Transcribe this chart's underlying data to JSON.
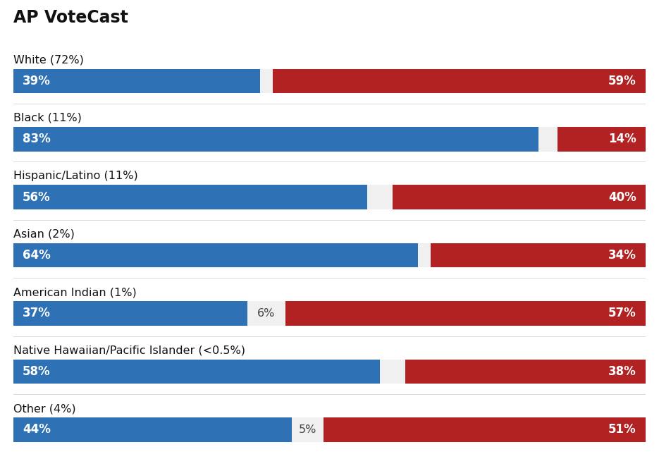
{
  "title": "AP VoteCast",
  "categories": [
    "White (72%)",
    "Black (11%)",
    "Hispanic/Latino (11%)",
    "Asian (2%)",
    "American Indian (1%)",
    "Native Hawaiian/Pacific Islander (<0.5%)",
    "Other (4%)"
  ],
  "blue_vals": [
    39,
    83,
    56,
    64,
    37,
    58,
    44
  ],
  "white_vals": [
    2,
    3,
    4,
    2,
    6,
    4,
    5
  ],
  "red_vals": [
    59,
    14,
    40,
    34,
    57,
    38,
    51
  ],
  "show_white_label": [
    false,
    false,
    false,
    false,
    true,
    false,
    true
  ],
  "blue_color": "#2E72B5",
  "red_color": "#B22222",
  "white_color": "#F0F0F0",
  "background_color": "#FFFFFF",
  "bar_height": 0.42,
  "title_fontsize": 17,
  "category_fontsize": 11.5,
  "value_fontsize": 12
}
